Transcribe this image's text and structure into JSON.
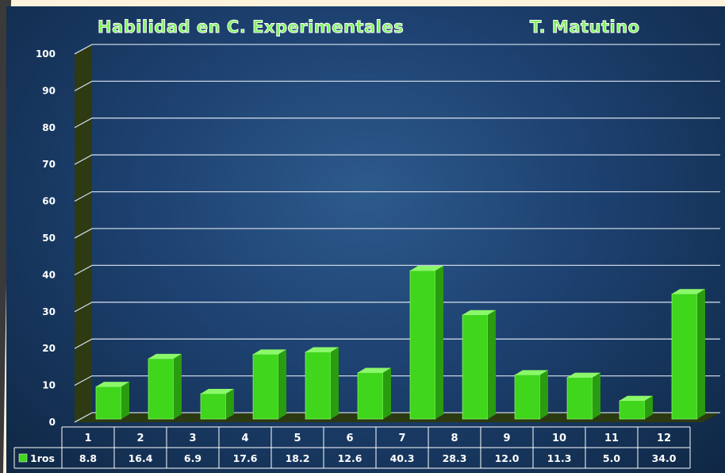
{
  "colors": {
    "bar_front": "#3fd61c",
    "bar_side": "#2a9c10",
    "bar_top": "#8bf86a",
    "wall": "#2d3a12",
    "floor": "#2b3a10",
    "grid": "#c9d4e2",
    "panel": "#1d4170",
    "title": "#7cf25a"
  },
  "chart_data": {
    "type": "bar",
    "title": "Habilidad en C. Experimentales",
    "subtitle": "T. Matutino",
    "categories": [
      "1",
      "2",
      "3",
      "4",
      "5",
      "6",
      "7",
      "8",
      "9",
      "10",
      "11",
      "12"
    ],
    "series": [
      {
        "name": "1ros",
        "values": [
          8.8,
          16.4,
          6.9,
          17.6,
          18.2,
          12.6,
          40.3,
          28.3,
          12.0,
          11.3,
          5.0,
          34.0
        ]
      }
    ],
    "value_labels": [
      "8.8",
      "16.4",
      "6.9",
      "17.6",
      "18.2",
      "12.6",
      "40.3",
      "28.3",
      "12.0",
      "11.3",
      "5.0",
      "34.0"
    ],
    "y_ticks": [
      "0",
      "10",
      "20",
      "30",
      "40",
      "50",
      "60",
      "70",
      "80",
      "90",
      "100"
    ],
    "ylim": [
      0,
      100
    ],
    "grid": true,
    "legend": "data-table"
  }
}
